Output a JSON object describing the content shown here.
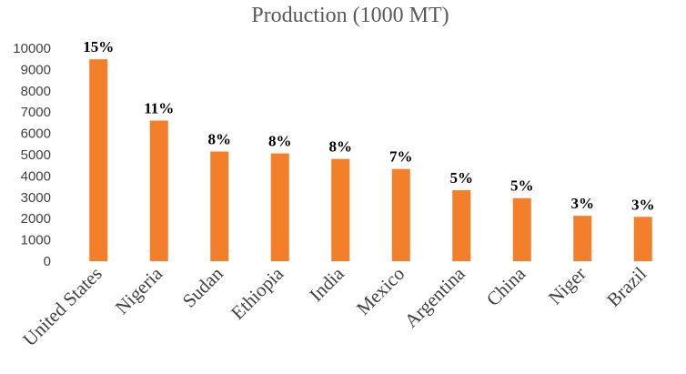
{
  "chart_data": {
    "type": "bar",
    "title": "Production (1000 MT)",
    "xlabel": "",
    "ylabel": "",
    "categories": [
      "United States",
      "Nigeria",
      "Sudan",
      "Ethiopia",
      "India",
      "Mexico",
      "Argentina",
      "China",
      "Niger",
      "Brazil"
    ],
    "values": [
      9480,
      6600,
      5150,
      5060,
      4800,
      4330,
      3330,
      2960,
      2130,
      2080
    ],
    "data_labels": [
      "15%",
      "11%",
      "8%",
      "8%",
      "8%",
      "7%",
      "5%",
      "5%",
      "3%",
      "3%"
    ],
    "ylim": [
      0,
      10000
    ],
    "yticks": [
      0,
      1000,
      2000,
      3000,
      4000,
      5000,
      6000,
      7000,
      8000,
      9000,
      10000
    ],
    "grid": false,
    "legend": "none",
    "bar_color": "#F47F2A"
  }
}
